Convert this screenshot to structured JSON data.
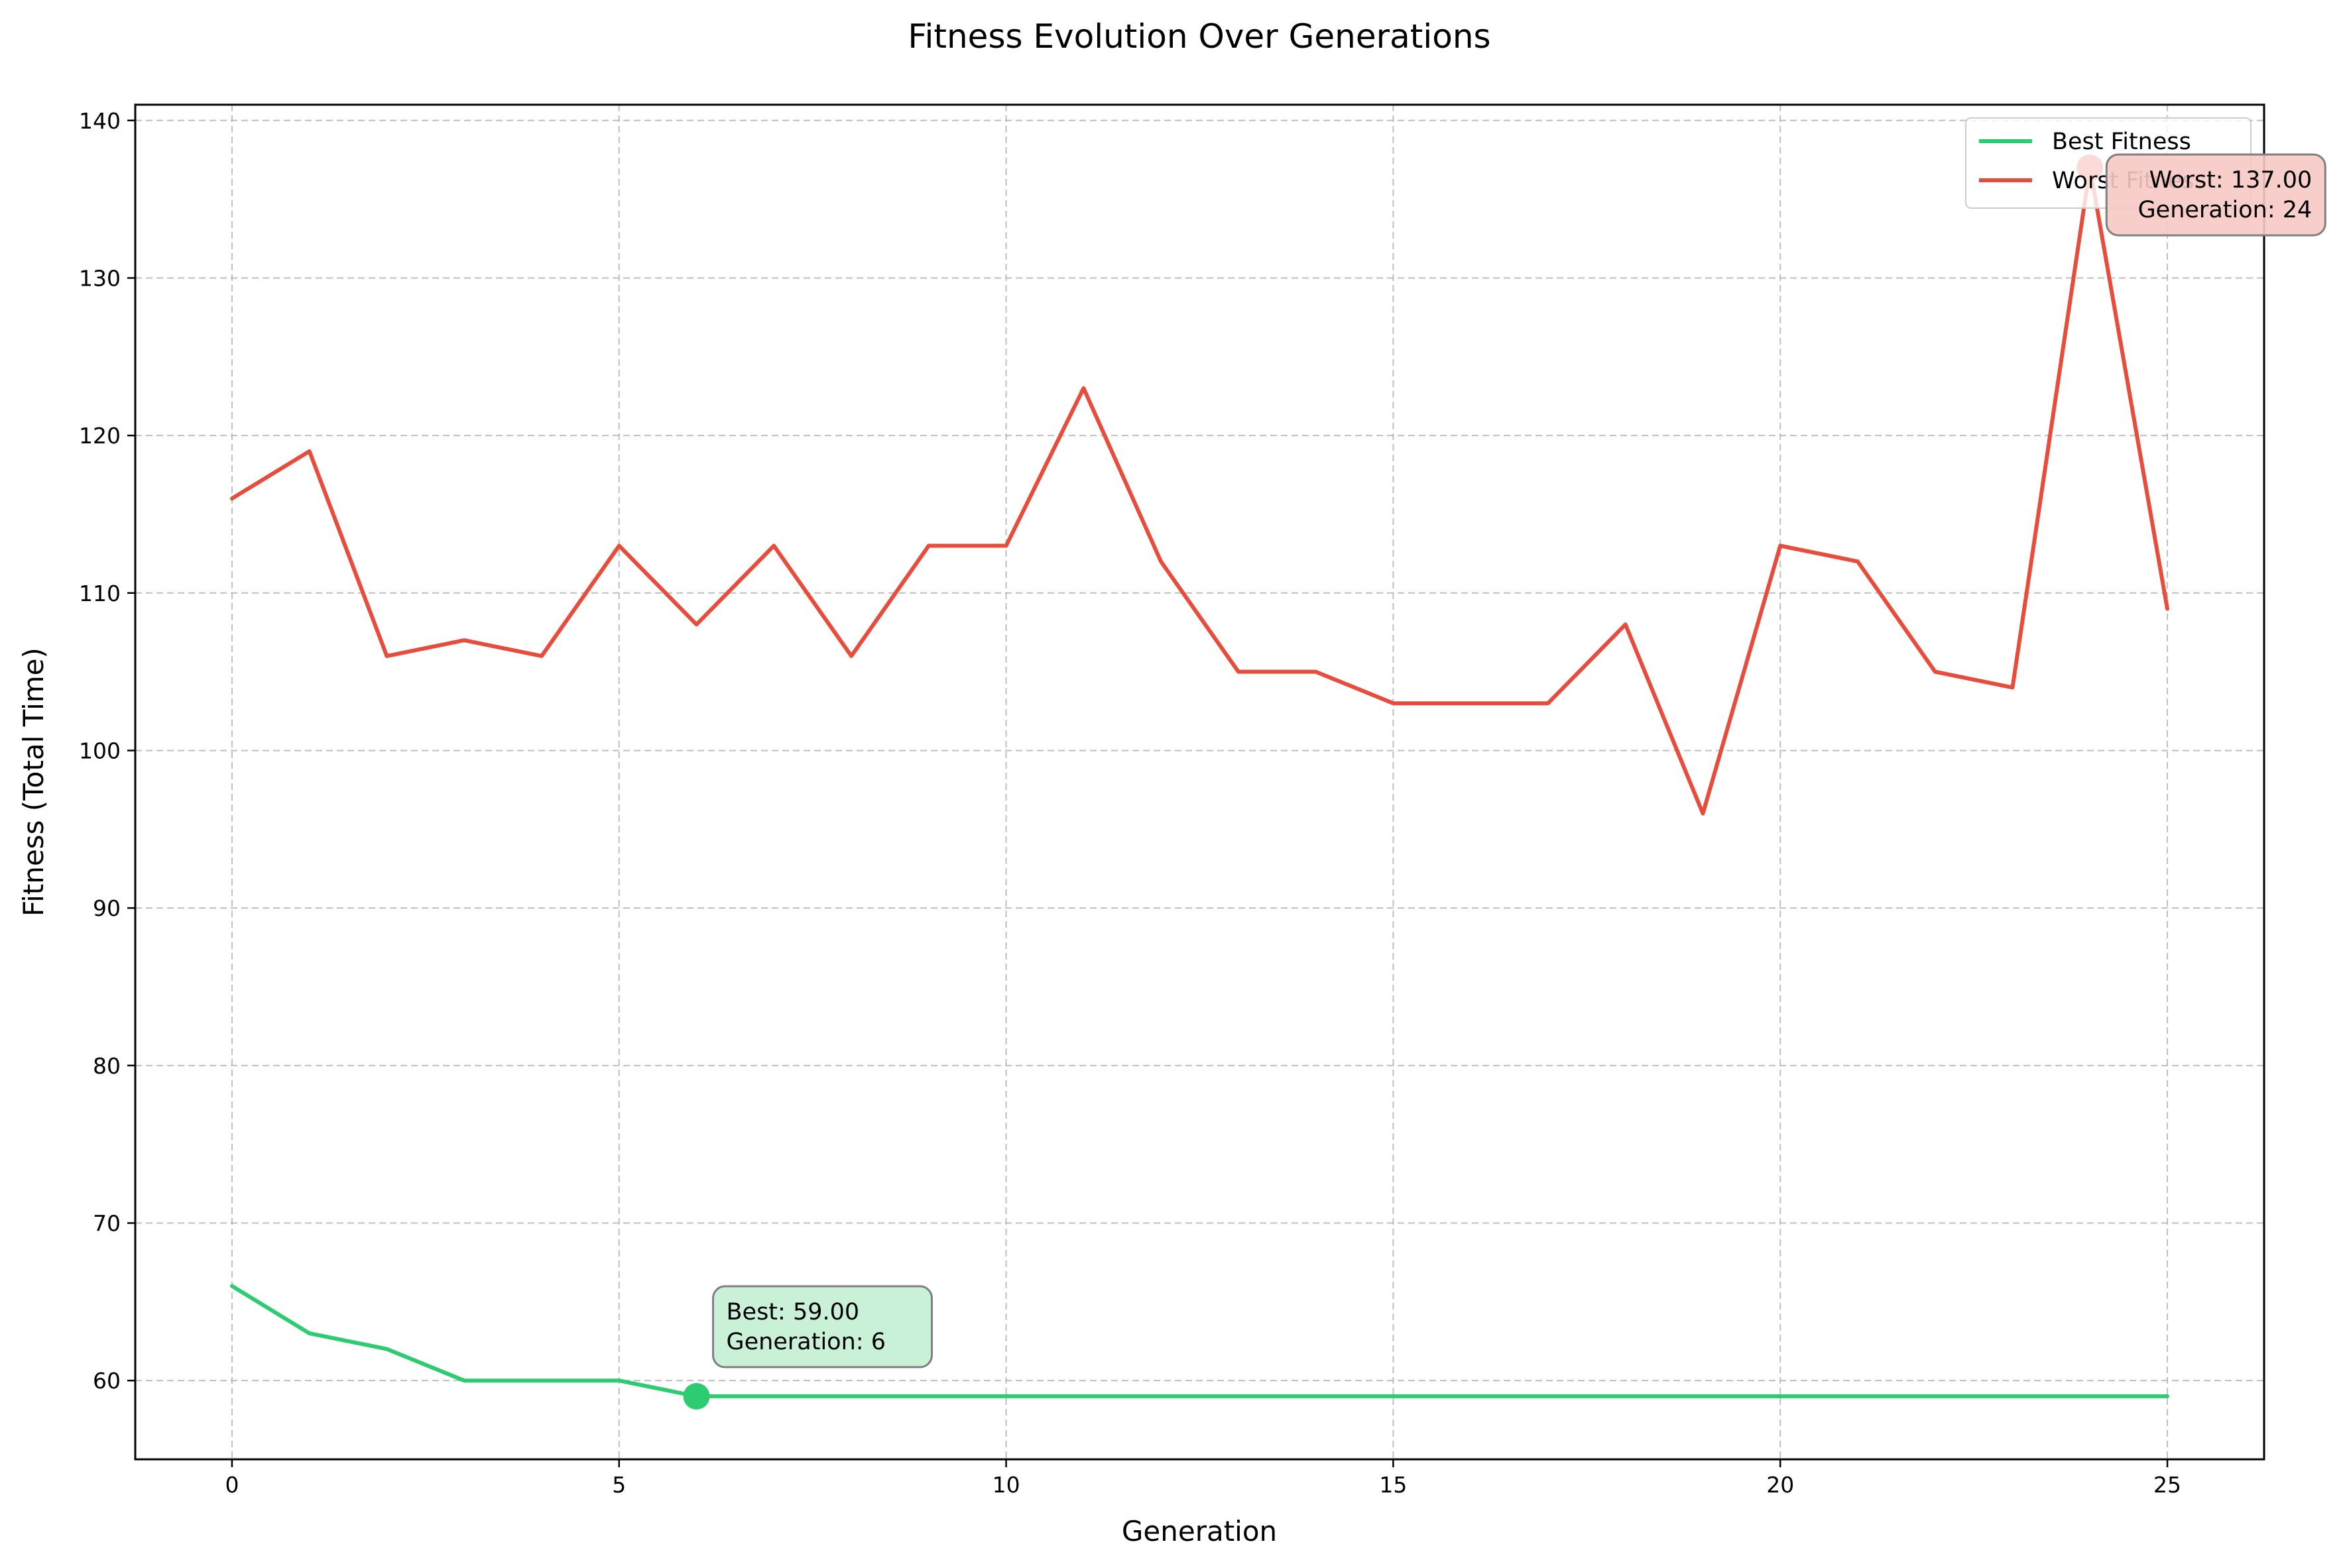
{
  "chart_data": {
    "type": "line",
    "title": "Fitness Evolution Over Generations",
    "xlabel": "Generation",
    "ylabel": "Fitness (Total Time)",
    "xlim": [
      -1.25,
      26.25
    ],
    "ylim": [
      55,
      141
    ],
    "xticks": [
      0,
      5,
      10,
      15,
      20,
      25
    ],
    "yticks": [
      60,
      70,
      80,
      90,
      100,
      110,
      120,
      130,
      140
    ],
    "grid": true,
    "legend_position": "top-right",
    "x": [
      0,
      1,
      2,
      3,
      4,
      5,
      6,
      7,
      8,
      9,
      10,
      11,
      12,
      13,
      14,
      15,
      16,
      17,
      18,
      19,
      20,
      21,
      22,
      23,
      24,
      25
    ],
    "series": [
      {
        "name": "Best Fitness",
        "color": "#2ecc71",
        "values": [
          66,
          63,
          62,
          60,
          60,
          60,
          59,
          59,
          59,
          59,
          59,
          59,
          59,
          59,
          59,
          59,
          59,
          59,
          59,
          59,
          59,
          59,
          59,
          59,
          59,
          59
        ]
      },
      {
        "name": "Worst Fitness",
        "color": "#e74c3c",
        "values": [
          116,
          119,
          106,
          107,
          106,
          113,
          108,
          113,
          106,
          113,
          113,
          123,
          112,
          105,
          105,
          103,
          103,
          103,
          108,
          96,
          113,
          112,
          105,
          104,
          137,
          109
        ]
      }
    ],
    "annotations": [
      {
        "series": "Best Fitness",
        "x": 6,
        "y": 59,
        "lines": [
          "Best: 59.00",
          "Generation: 6"
        ],
        "box_color": "#c3f0d4"
      },
      {
        "series": "Worst Fitness",
        "x": 24,
        "y": 137,
        "lines": [
          "Worst: 137.00",
          "Generation: 24"
        ],
        "box_color": "#f7c9c4"
      }
    ]
  }
}
